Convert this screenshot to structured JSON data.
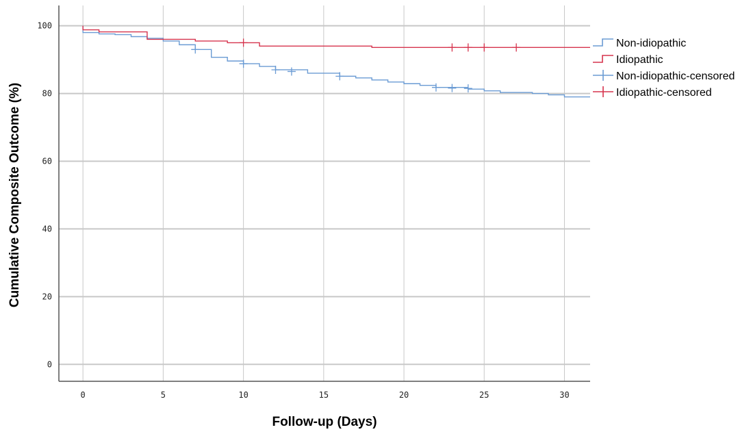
{
  "chart_data": {
    "type": "line",
    "title": "",
    "xlabel": "Follow-up (Days)",
    "ylabel": "Cumulative Composite Outcome (%)",
    "xlim": [
      -1.5,
      31.6
    ],
    "ylim": [
      -5,
      106
    ],
    "xticks": [
      0,
      5,
      10,
      15,
      20,
      25,
      30
    ],
    "yticks": [
      0,
      20,
      40,
      60,
      80,
      100
    ],
    "grid": true,
    "legend_position": "right",
    "legend": [
      "Non-idiopathic",
      "Idiopathic",
      "Non-idiopathic-censored",
      "Idiopathic-censored"
    ],
    "series": [
      {
        "name": "Non-idiopathic",
        "color": "#6a9bd4",
        "step": true,
        "x": [
          0,
          0,
          1,
          2,
          3,
          4,
          5,
          6,
          7,
          8,
          9,
          10,
          11,
          12,
          14,
          16,
          17,
          18,
          19,
          20,
          21,
          22,
          24,
          25,
          26,
          28,
          29,
          30,
          31.6
        ],
        "y": [
          100,
          98,
          97.6,
          97.4,
          96.8,
          96.3,
          95.5,
          94.4,
          93,
          90.7,
          89.6,
          88.8,
          88,
          87,
          86,
          85.1,
          84.6,
          84,
          83.4,
          82.9,
          82.4,
          81.8,
          81.3,
          80.8,
          80.3,
          80,
          79.6,
          79,
          79
        ]
      },
      {
        "name": "Idiopathic",
        "color": "#d6334d",
        "step": true,
        "x": [
          0,
          0,
          1,
          4,
          7,
          9,
          11,
          18,
          31.6
        ],
        "y": [
          100,
          98.8,
          98.2,
          96,
          95.5,
          95,
          94,
          93.6,
          93.6
        ]
      }
    ],
    "censored": [
      {
        "name": "Non-idiopathic-censored",
        "color": "#6a9bd4",
        "x": [
          7,
          10,
          12,
          13,
          16,
          22,
          23,
          24
        ],
        "y": [
          93,
          88.8,
          87,
          86.5,
          85.1,
          81.8,
          81.6,
          81.5
        ]
      },
      {
        "name": "Idiopathic-censored",
        "color": "#d6334d",
        "x": [
          10,
          23,
          24,
          25,
          27
        ],
        "y": [
          95,
          93.6,
          93.6,
          93.6,
          93.6
        ]
      }
    ]
  }
}
